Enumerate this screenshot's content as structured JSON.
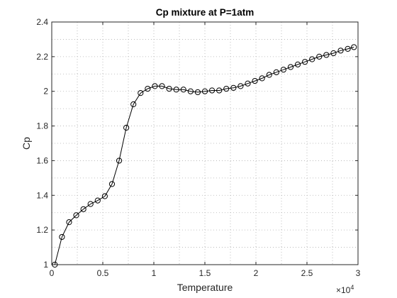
{
  "chart_data": {
    "type": "line",
    "title": "Cp mixture at P=1atm",
    "xlabel": "Temperature",
    "ylabel": "Cp",
    "x_exponent_base": "×10",
    "x_exponent_power": "4",
    "xlim": [
      0,
      30000
    ],
    "ylim": [
      1,
      2.4
    ],
    "x_ticks": [
      0,
      5000,
      10000,
      15000,
      20000,
      25000,
      30000
    ],
    "x_tick_labels": [
      "0",
      "0.5",
      "1",
      "1.5",
      "2",
      "2.5",
      "3"
    ],
    "y_ticks": [
      1,
      1.2,
      1.4,
      1.6,
      1.8,
      2,
      2.2,
      2.4
    ],
    "y_tick_labels": [
      "1",
      "1.2",
      "1.4",
      "1.6",
      "1.8",
      "2",
      "2.2",
      "2.4"
    ],
    "grid": "minor-dotted",
    "legend": "none",
    "line_color": "#000000",
    "marker": "circle",
    "series": [
      {
        "x": [
          300,
          1000,
          1700,
          2400,
          3100,
          3800,
          4500,
          5200,
          5900,
          6600,
          7300,
          8000,
          8700,
          9400,
          10100,
          10800,
          11500,
          12200,
          12900,
          13600,
          14300,
          15000,
          15700,
          16400,
          17100,
          17800,
          18500,
          19200,
          19900,
          20600,
          21300,
          22000,
          22700,
          23400,
          24100,
          24800,
          25500,
          26200,
          26900,
          27600,
          28300,
          29000,
          29600
        ],
        "values": [
          1.0,
          1.16,
          1.245,
          1.285,
          1.32,
          1.35,
          1.37,
          1.395,
          1.465,
          1.6,
          1.79,
          1.925,
          1.99,
          2.015,
          2.03,
          2.03,
          2.015,
          2.01,
          2.01,
          2.0,
          1.995,
          2.0,
          2.005,
          2.005,
          2.015,
          2.02,
          2.03,
          2.045,
          2.06,
          2.075,
          2.095,
          2.11,
          2.125,
          2.14,
          2.155,
          2.17,
          2.185,
          2.2,
          2.21,
          2.22,
          2.235,
          2.245,
          2.255
        ]
      }
    ]
  }
}
